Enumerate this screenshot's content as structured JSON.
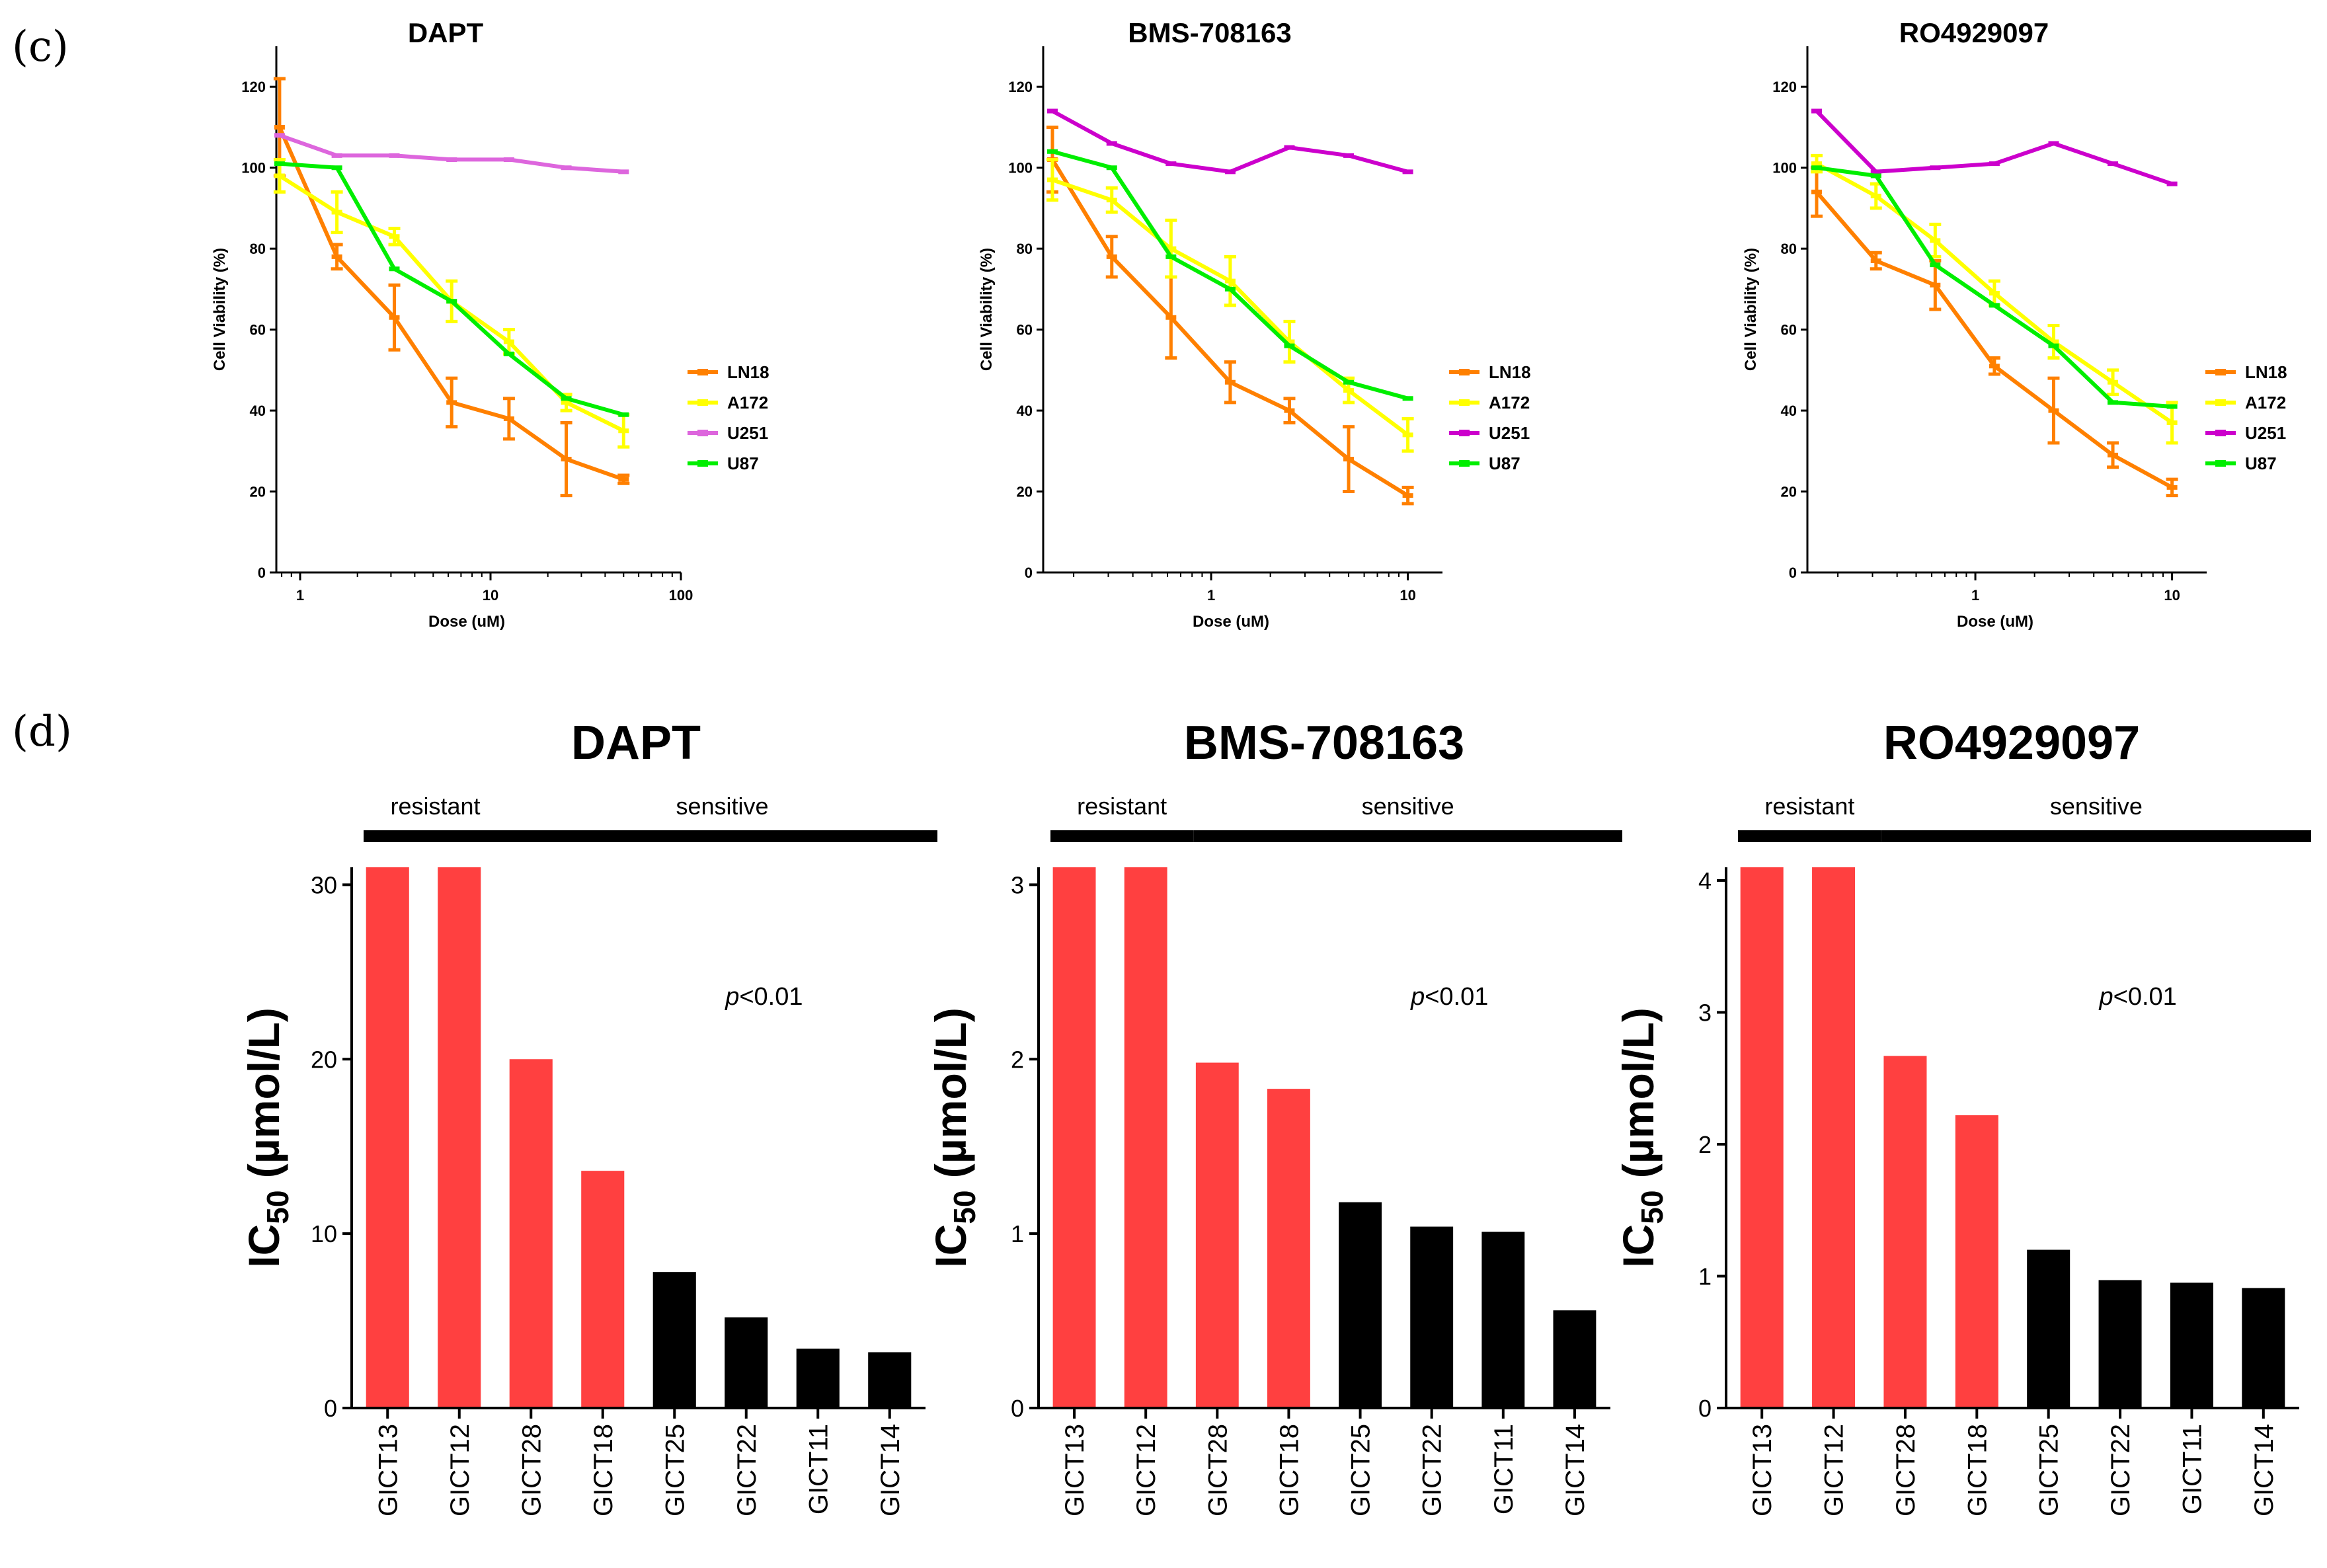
{
  "panel_labels": [
    "(c)",
    "(d)"
  ],
  "chart_data": [
    {
      "type": "line",
      "title": "DAPT",
      "xlabel": "Dose (uM)",
      "ylabel": "Cell Viability (%)",
      "xscale": "log",
      "xlim": [
        0.75,
        100
      ],
      "xticks": [
        1,
        10,
        100
      ],
      "xtick_labels": [
        "1",
        "10",
        "100"
      ],
      "ylim": [
        0,
        130
      ],
      "yticks": [
        0,
        20,
        40,
        60,
        80,
        100,
        120
      ],
      "legend_position": "right",
      "x": [
        0.78,
        1.56,
        3.125,
        6.25,
        12.5,
        25,
        50
      ],
      "series": [
        {
          "name": "LN18",
          "color": "#ff8000",
          "values": [
            110,
            78,
            63,
            42,
            38,
            28,
            23
          ],
          "err": [
            12,
            3,
            8,
            6,
            5,
            9,
            1
          ]
        },
        {
          "name": "A172",
          "color": "#ffff00",
          "values": [
            98,
            89,
            83,
            67,
            57,
            42,
            35
          ],
          "err": [
            4,
            5,
            2,
            5,
            3,
            2,
            4
          ]
        },
        {
          "name": "U251",
          "color": "#dd66dd",
          "values": [
            108,
            103,
            103,
            102,
            102,
            100,
            99
          ],
          "err": [
            0,
            0,
            0,
            0,
            0,
            0,
            0
          ]
        },
        {
          "name": "U87",
          "color": "#00ee00",
          "values": [
            101,
            100,
            75,
            67,
            54,
            43,
            39
          ],
          "err": [
            0,
            0,
            0,
            0,
            0,
            0,
            0
          ]
        }
      ]
    },
    {
      "type": "line",
      "title": "BMS-708163",
      "xlabel": "Dose (uM)",
      "ylabel": "Cell Viability (%)",
      "xscale": "log",
      "xlim": [
        0.14,
        15
      ],
      "xticks": [
        1,
        10
      ],
      "xtick_labels": [
        "1",
        "10"
      ],
      "ylim": [
        0,
        130
      ],
      "yticks": [
        0,
        20,
        40,
        60,
        80,
        100,
        120
      ],
      "legend_position": "right",
      "x": [
        0.156,
        0.3125,
        0.625,
        1.25,
        2.5,
        5,
        10
      ],
      "series": [
        {
          "name": "LN18",
          "color": "#ff8000",
          "values": [
            102,
            78,
            63,
            47,
            40,
            28,
            19
          ],
          "err": [
            8,
            5,
            10,
            5,
            3,
            8,
            2
          ]
        },
        {
          "name": "A172",
          "color": "#ffff00",
          "values": [
            97,
            92,
            80,
            72,
            57,
            45,
            34
          ],
          "err": [
            5,
            3,
            7,
            6,
            5,
            3,
            4
          ]
        },
        {
          "name": "U251",
          "color": "#cc00cc",
          "values": [
            114,
            106,
            101,
            99,
            105,
            103,
            99
          ],
          "err": [
            0,
            0,
            0,
            0,
            0,
            0,
            0
          ]
        },
        {
          "name": "U87",
          "color": "#00ee00",
          "values": [
            104,
            100,
            78,
            70,
            56,
            47,
            43
          ],
          "err": [
            0,
            0,
            0,
            0,
            0,
            0,
            0
          ]
        }
      ]
    },
    {
      "type": "line",
      "title": "RO4929097",
      "xlabel": "Dose (uM)",
      "ylabel": "Cell Viability (%)",
      "xscale": "log",
      "xlim": [
        0.14,
        15
      ],
      "xticks": [
        1,
        10
      ],
      "xtick_labels": [
        "1",
        "10"
      ],
      "ylim": [
        0,
        130
      ],
      "yticks": [
        0,
        20,
        40,
        60,
        80,
        100,
        120
      ],
      "legend_position": "right",
      "x": [
        0.156,
        0.3125,
        0.625,
        1.25,
        2.5,
        5,
        10
      ],
      "series": [
        {
          "name": "LN18",
          "color": "#ff8000",
          "values": [
            94,
            77,
            71,
            51,
            40,
            29,
            21
          ],
          "err": [
            6,
            2,
            6,
            2,
            8,
            3,
            2
          ]
        },
        {
          "name": "A172",
          "color": "#ffff00",
          "values": [
            101,
            93,
            82,
            69,
            57,
            47,
            37
          ],
          "err": [
            2,
            3,
            4,
            3,
            4,
            3,
            5
          ]
        },
        {
          "name": "U251",
          "color": "#cc00cc",
          "values": [
            114,
            99,
            100,
            101,
            106,
            101,
            96
          ],
          "err": [
            0,
            0,
            0,
            0,
            0,
            0,
            0
          ]
        },
        {
          "name": "U87",
          "color": "#00ee00",
          "values": [
            100,
            98,
            76,
            66,
            56,
            42,
            41
          ],
          "err": [
            0,
            0,
            0,
            0,
            0,
            0,
            0
          ]
        }
      ]
    },
    {
      "type": "bar",
      "title": "DAPT",
      "ylabel": "IC50 (µmol/L)",
      "ylim": [
        0,
        31
      ],
      "yticks": [
        0,
        10,
        20,
        30
      ],
      "categories": [
        "GICT13",
        "GICT12",
        "GICT28",
        "GICT18",
        "GICT25",
        "GICT22",
        "GICT11",
        "GICT14"
      ],
      "values": [
        31,
        31,
        20,
        13.6,
        7.8,
        5.2,
        3.4,
        3.2
      ],
      "colors": [
        "#ff4040",
        "#ff4040",
        "#ff4040",
        "#ff4040",
        "#000000",
        "#000000",
        "#000000",
        "#000000"
      ],
      "groups": [
        {
          "label": "resistant",
          "from": 0,
          "to": 1
        },
        {
          "label": "sensitive",
          "from": 2,
          "to": 7
        }
      ],
      "annotation": {
        "italic": "p",
        "text": "<0.01"
      }
    },
    {
      "type": "bar",
      "title": "BMS-708163",
      "ylabel": "IC50 (µmol/L)",
      "ylim": [
        0,
        3.1
      ],
      "yticks": [
        0,
        1,
        2,
        3
      ],
      "categories": [
        "GICT13",
        "GICT12",
        "GICT28",
        "GICT18",
        "GICT25",
        "GICT22",
        "GICT11",
        "GICT14"
      ],
      "values": [
        3.1,
        3.1,
        1.98,
        1.83,
        1.18,
        1.04,
        1.01,
        0.56
      ],
      "colors": [
        "#ff4040",
        "#ff4040",
        "#ff4040",
        "#ff4040",
        "#000000",
        "#000000",
        "#000000",
        "#000000"
      ],
      "groups": [
        {
          "label": "resistant",
          "from": 0,
          "to": 1
        },
        {
          "label": "sensitive",
          "from": 2,
          "to": 7
        }
      ],
      "annotation": {
        "italic": "p",
        "text": "<0.01"
      }
    },
    {
      "type": "bar",
      "title": "RO4929097",
      "ylabel": "IC50 (µmol/L)",
      "ylim": [
        0,
        4.1
      ],
      "yticks": [
        0,
        1,
        2,
        3,
        4
      ],
      "categories": [
        "GICT13",
        "GICT12",
        "GICT28",
        "GICT18",
        "GICT25",
        "GICT22",
        "GICT11",
        "GICT14"
      ],
      "values": [
        4.1,
        4.1,
        2.67,
        2.22,
        1.2,
        0.97,
        0.95,
        0.91
      ],
      "colors": [
        "#ff4040",
        "#ff4040",
        "#ff4040",
        "#ff4040",
        "#000000",
        "#000000",
        "#000000",
        "#000000"
      ],
      "groups": [
        {
          "label": "resistant",
          "from": 0,
          "to": 1
        },
        {
          "label": "sensitive",
          "from": 2,
          "to": 7
        }
      ],
      "annotation": {
        "italic": "p",
        "text": "<0.01"
      }
    }
  ]
}
